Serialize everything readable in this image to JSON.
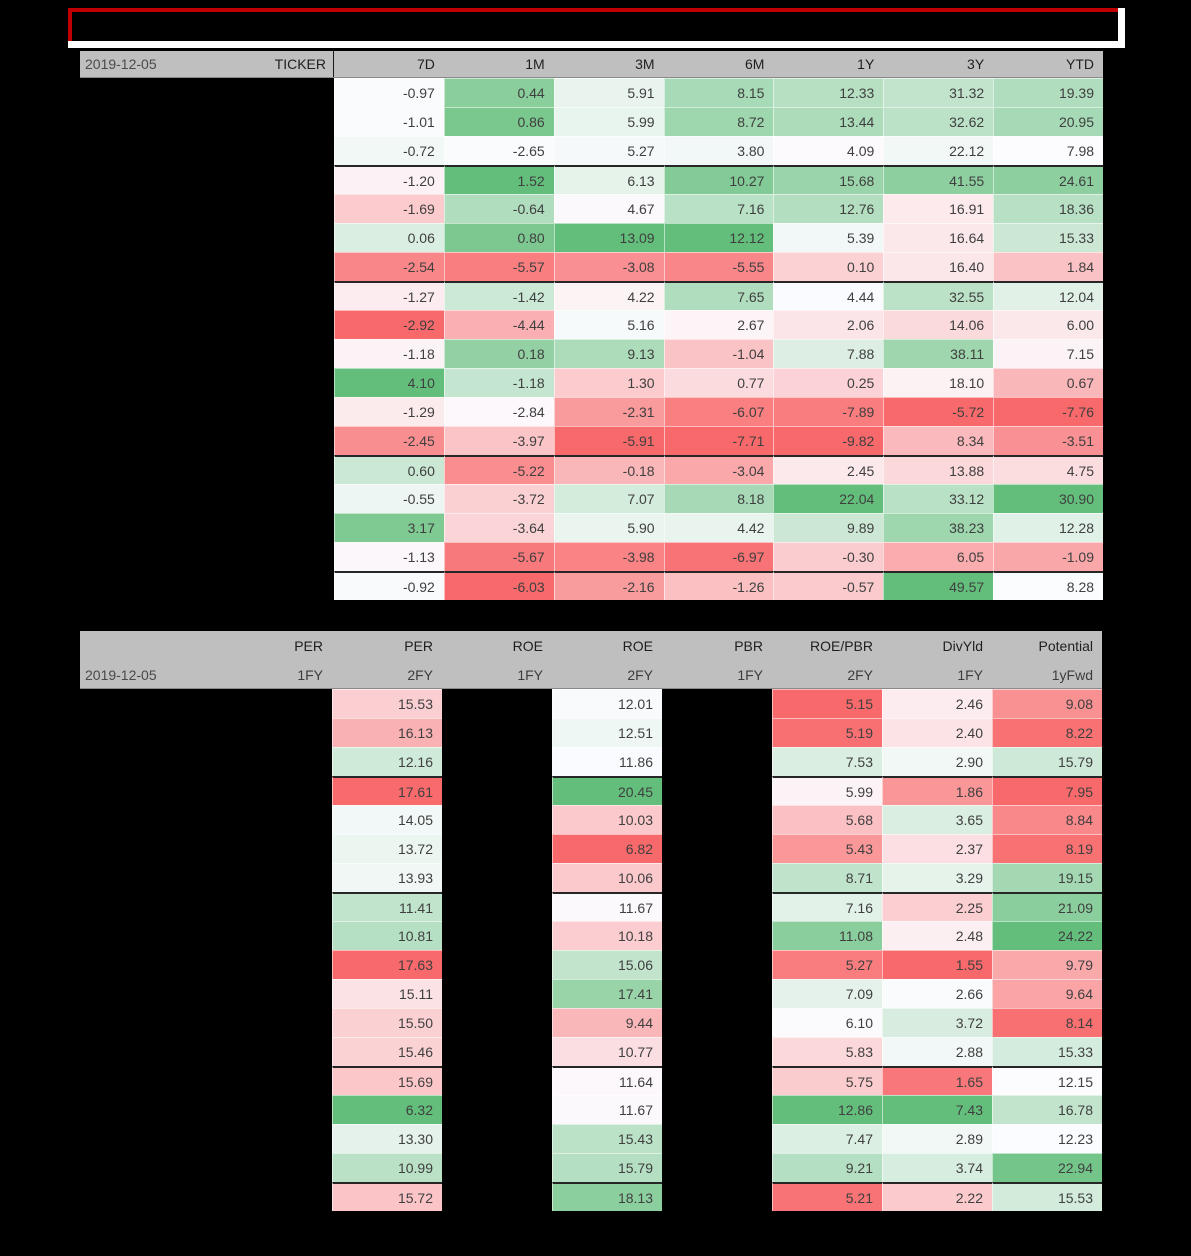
{
  "report": {
    "title_box": {
      "text": ""
    }
  },
  "colors": {
    "background": "#000000",
    "header_bg": "#BFBFBF",
    "title_border_red": "#C00000",
    "title_border_white": "#FFFFFF",
    "scale_min_red": "#F8696B",
    "scale_mid_white": "#FCFCFF",
    "scale_max_green": "#63BE7B"
  },
  "table1": {
    "date_label": "2019-12-05",
    "ticker_label": "TICKER",
    "columns": [
      "7D",
      "1M",
      "3M",
      "6M",
      "1Y",
      "3Y",
      "YTD"
    ],
    "rows": [
      [
        -0.97,
        0.44,
        5.91,
        8.15,
        12.33,
        31.32,
        19.39
      ],
      [
        -1.01,
        0.86,
        5.99,
        8.72,
        13.44,
        32.62,
        20.95
      ],
      [
        -0.72,
        -2.65,
        5.27,
        3.8,
        4.09,
        22.12,
        7.98
      ],
      [
        -1.2,
        1.52,
        6.13,
        10.27,
        15.68,
        41.55,
        24.61
      ],
      [
        -1.69,
        -0.64,
        4.67,
        7.16,
        12.76,
        16.91,
        18.36
      ],
      [
        0.06,
        0.8,
        13.09,
        12.12,
        5.39,
        16.64,
        15.33
      ],
      [
        -2.54,
        -5.57,
        -3.08,
        -5.55,
        0.1,
        16.4,
        1.84
      ],
      [
        -1.27,
        -1.42,
        4.22,
        7.65,
        4.44,
        32.55,
        12.04
      ],
      [
        -2.92,
        -4.44,
        5.16,
        2.67,
        2.06,
        14.06,
        6.0
      ],
      [
        -1.18,
        0.18,
        9.13,
        -1.04,
        7.88,
        38.11,
        7.15
      ],
      [
        4.1,
        -1.18,
        1.3,
        0.77,
        0.25,
        18.1,
        0.67
      ],
      [
        -1.29,
        -2.84,
        -2.31,
        -6.07,
        -7.89,
        -5.72,
        -7.76
      ],
      [
        -2.45,
        -3.97,
        -5.91,
        -7.71,
        -9.82,
        8.34,
        -3.51
      ],
      [
        0.6,
        -5.22,
        -0.18,
        -3.04,
        2.45,
        13.88,
        4.75
      ],
      [
        -0.55,
        -3.72,
        7.07,
        8.18,
        22.04,
        33.12,
        30.9
      ],
      [
        3.17,
        -3.64,
        5.9,
        4.42,
        9.89,
        38.23,
        12.28
      ],
      [
        -1.13,
        -5.67,
        -3.98,
        -6.97,
        -0.3,
        6.05,
        -1.09
      ],
      [
        -0.92,
        -6.03,
        -2.16,
        -1.26,
        -0.57,
        49.57,
        8.28
      ]
    ],
    "group_breaks_after": [
      3,
      7,
      13,
      17
    ]
  },
  "table2": {
    "date_label": "2019-12-05",
    "columns": [
      {
        "top": "PER",
        "bottom": "1FY",
        "visible": false,
        "reverse": false
      },
      {
        "top": "PER",
        "bottom": "2FY",
        "visible": true,
        "reverse": true
      },
      {
        "top": "ROE",
        "bottom": "1FY",
        "visible": false,
        "reverse": false
      },
      {
        "top": "ROE",
        "bottom": "2FY",
        "visible": true,
        "reverse": false
      },
      {
        "top": "PBR",
        "bottom": "1FY",
        "visible": false,
        "reverse": false
      },
      {
        "top": "ROE/PBR",
        "bottom": "2FY",
        "visible": true,
        "reverse": false
      },
      {
        "top": "DivYld",
        "bottom": "1FY",
        "visible": true,
        "reverse": false
      },
      {
        "top": "Potential",
        "bottom": "1yFwd",
        "visible": true,
        "reverse": false
      }
    ],
    "rows": [
      [
        15.53,
        12.01,
        5.15,
        2.46,
        9.08
      ],
      [
        16.13,
        12.51,
        5.19,
        2.4,
        8.22
      ],
      [
        12.16,
        11.86,
        7.53,
        2.9,
        15.79
      ],
      [
        17.61,
        20.45,
        5.99,
        1.86,
        7.95
      ],
      [
        14.05,
        10.03,
        5.68,
        3.65,
        8.84
      ],
      [
        13.72,
        6.82,
        5.43,
        2.37,
        8.19
      ],
      [
        13.93,
        10.06,
        8.71,
        3.29,
        19.15
      ],
      [
        11.41,
        11.67,
        7.16,
        2.25,
        21.09
      ],
      [
        10.81,
        10.18,
        11.08,
        2.48,
        24.22
      ],
      [
        17.63,
        15.06,
        5.27,
        1.55,
        9.79
      ],
      [
        15.11,
        17.41,
        7.09,
        2.66,
        9.64
      ],
      [
        15.5,
        9.44,
        6.1,
        3.72,
        8.14
      ],
      [
        15.46,
        10.77,
        5.83,
        2.88,
        15.33
      ],
      [
        15.69,
        11.64,
        5.75,
        1.65,
        12.15
      ],
      [
        6.32,
        11.67,
        12.86,
        7.43,
        16.78
      ],
      [
        13.3,
        15.43,
        7.47,
        2.89,
        12.23
      ],
      [
        10.99,
        15.79,
        9.21,
        3.74,
        22.94
      ],
      [
        15.72,
        18.13,
        5.21,
        2.22,
        15.53
      ]
    ],
    "group_breaks_after": [
      3,
      7,
      13,
      17
    ]
  }
}
